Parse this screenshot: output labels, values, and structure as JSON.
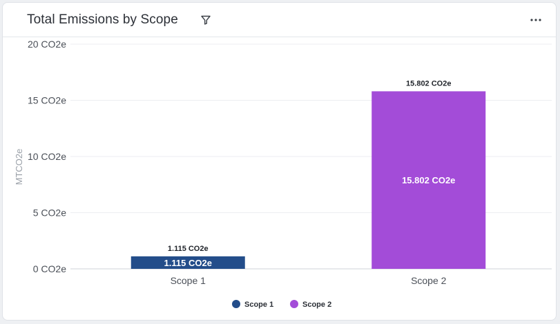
{
  "widget": {
    "title": "Total Emissions by Scope",
    "filter_icon": "filter-icon",
    "more_icon": "more-options-icon"
  },
  "chart_data": {
    "type": "bar",
    "title": "Total Emissions by Scope",
    "categories": [
      "Scope 1",
      "Scope 2"
    ],
    "values": [
      1.115,
      15.802
    ],
    "data_labels": [
      "1.115 CO2e",
      "15.802 CO2e"
    ],
    "colors": [
      "#234d8a",
      "#a34cd8"
    ],
    "ylabel": "MTCO2e",
    "xlabel": "",
    "ylim": [
      0,
      20
    ],
    "yticks": [
      {
        "value": 0,
        "label": "0 CO2e"
      },
      {
        "value": 5,
        "label": "5 CO2e"
      },
      {
        "value": 10,
        "label": "10 CO2e"
      },
      {
        "value": 15,
        "label": "15 CO2e"
      },
      {
        "value": 20,
        "label": "20 CO2e"
      }
    ],
    "grid": true,
    "legend_position": "bottom",
    "legend": [
      "Scope 1",
      "Scope 2"
    ]
  }
}
